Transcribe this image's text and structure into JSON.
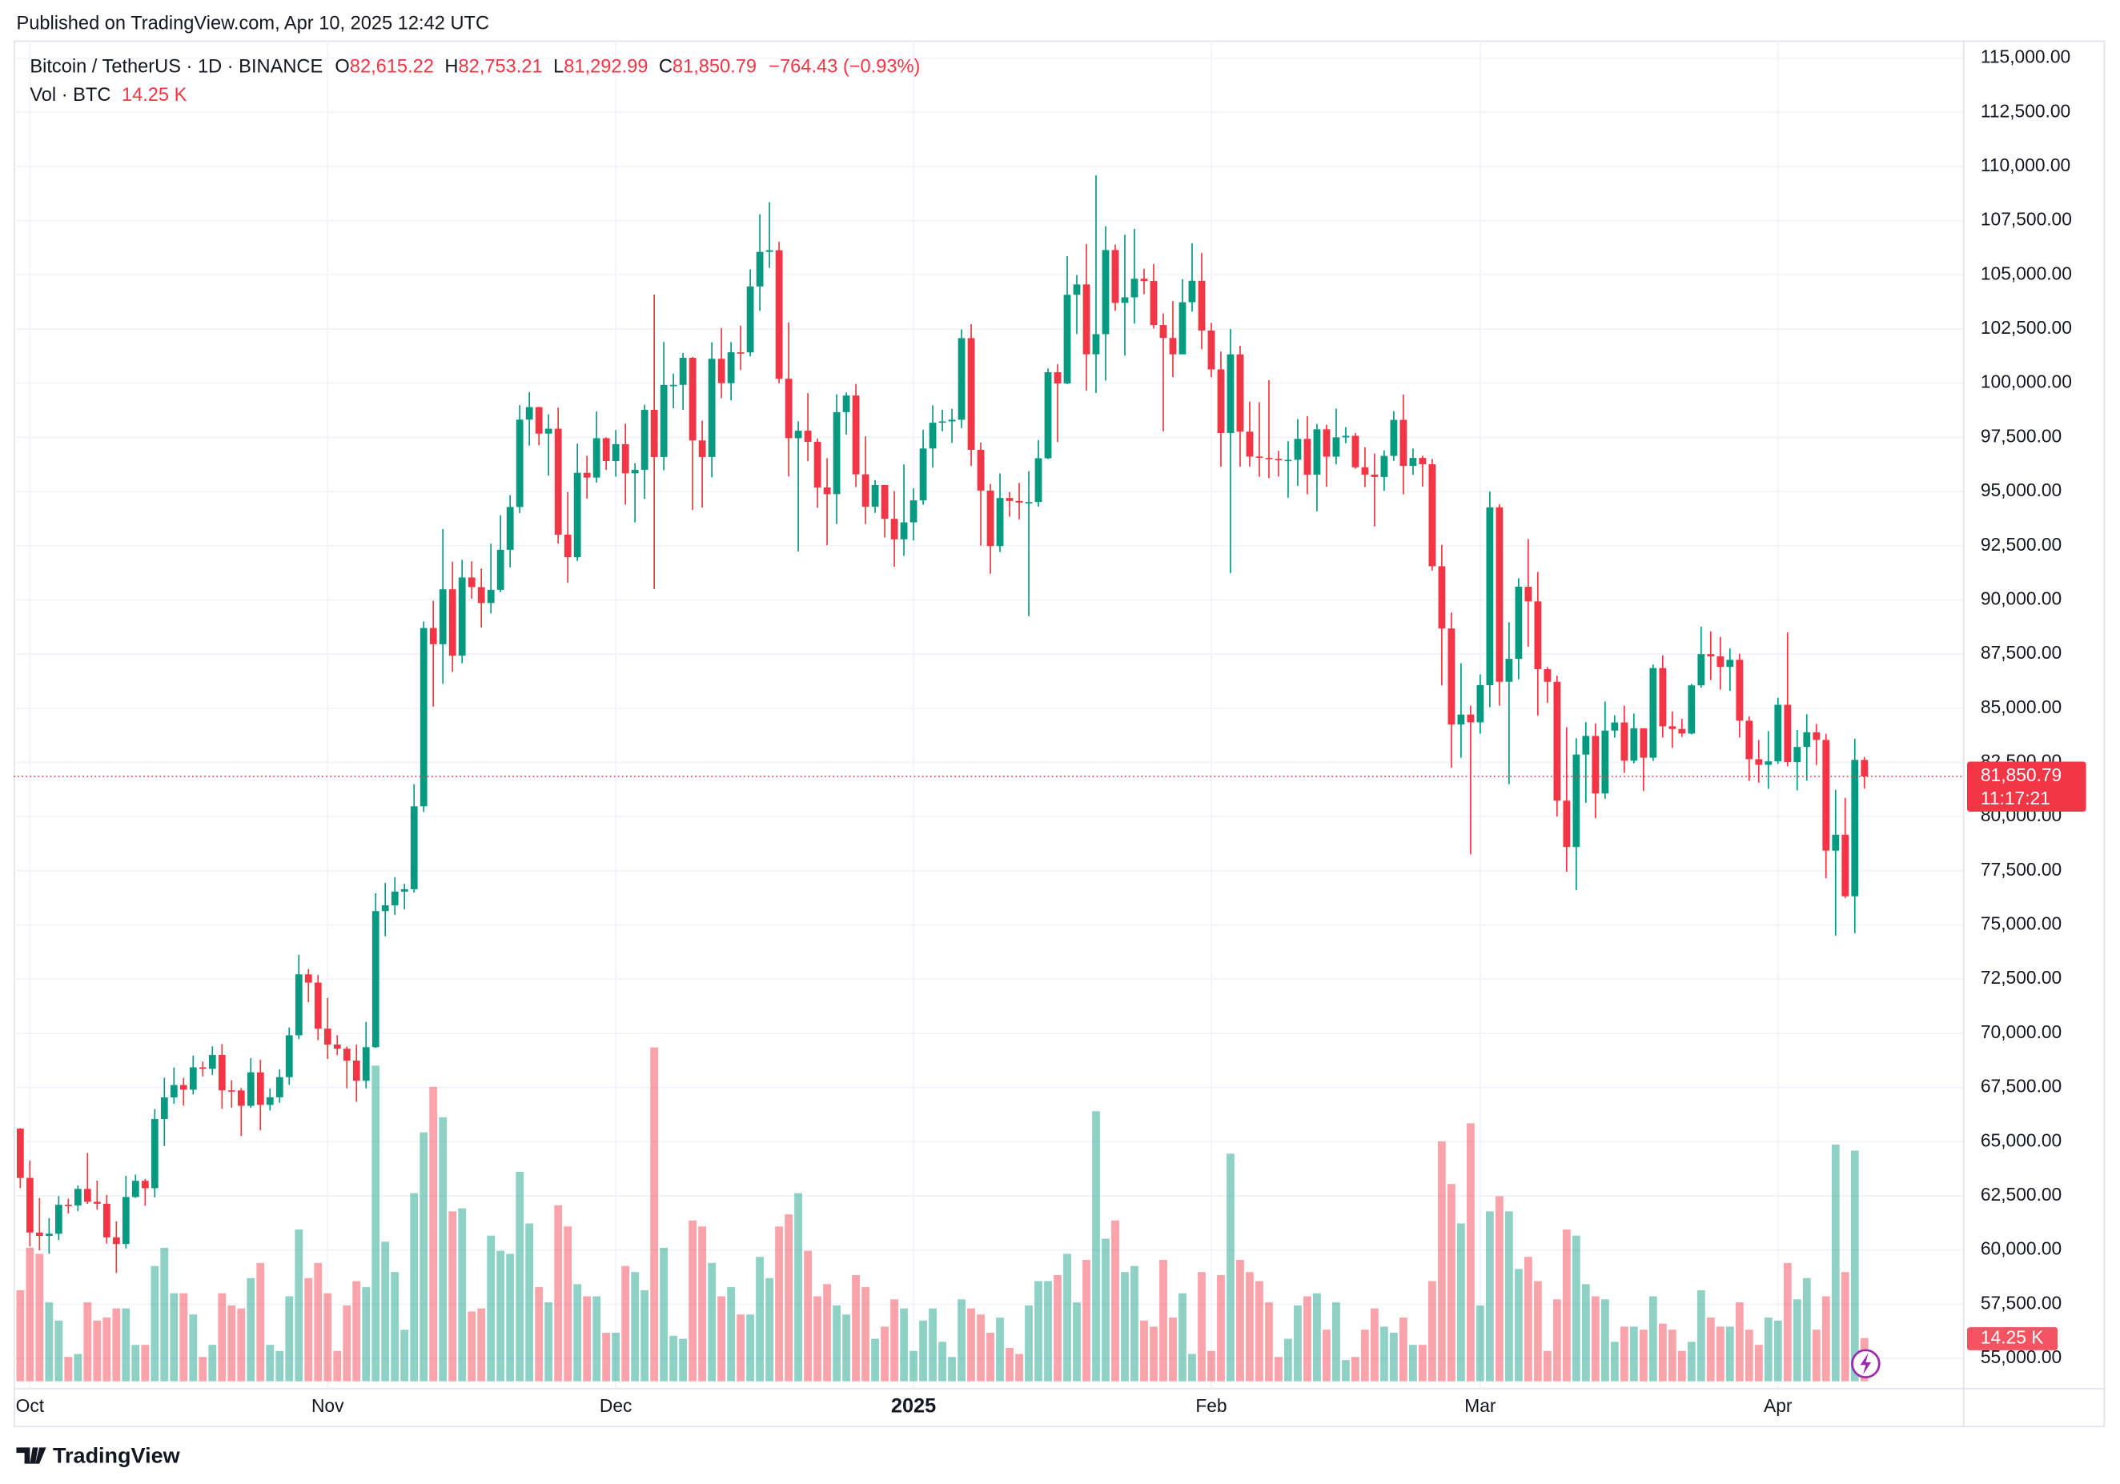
{
  "header": {
    "published": "Published on TradingView.com, Apr 10, 2025 12:42 UTC",
    "brand": "TradingView"
  },
  "chart_data": {
    "type": "candlestick",
    "title": "Bitcoin / TetherUS · 1D · BINANCE",
    "ohlc_legend": [
      {
        "key": "O",
        "label": "82,615.22"
      },
      {
        "key": "H",
        "label": "82,753.21"
      },
      {
        "key": "L",
        "label": "81,292.99"
      },
      {
        "key": "C",
        "label": "81,850.79"
      }
    ],
    "change_label": "−764.43 (−0.93%)",
    "last_price_label": "81,850.79",
    "countdown": "11:17:21",
    "up_color": "#089981",
    "down_color": "#f23645",
    "grid": true,
    "categories": [
      null,
      "Oct",
      null,
      null,
      null,
      null,
      null,
      null,
      null,
      null,
      null,
      null,
      null,
      null,
      null,
      null,
      null,
      null,
      null,
      null,
      null,
      null,
      null,
      null,
      null,
      null,
      null,
      null,
      null,
      null,
      null,
      null,
      "Nov",
      null,
      null,
      null,
      null,
      null,
      null,
      null,
      null,
      null,
      null,
      null,
      null,
      null,
      null,
      null,
      null,
      null,
      null,
      null,
      null,
      null,
      null,
      null,
      null,
      null,
      null,
      null,
      null,
      null,
      "Dec",
      null,
      null,
      null,
      null,
      null,
      null,
      null,
      null,
      null,
      null,
      null,
      null,
      null,
      null,
      null,
      null,
      null,
      null,
      null,
      null,
      null,
      null,
      null,
      null,
      null,
      null,
      null,
      null,
      null,
      null,
      "2025",
      null,
      null,
      null,
      null,
      null,
      null,
      null,
      null,
      null,
      null,
      null,
      null,
      null,
      null,
      null,
      null,
      null,
      null,
      null,
      null,
      null,
      null,
      null,
      null,
      null,
      null,
      null,
      null,
      null,
      null,
      "Feb",
      null,
      null,
      null,
      null,
      null,
      null,
      null,
      null,
      null,
      null,
      null,
      null,
      null,
      null,
      null,
      null,
      null,
      null,
      null,
      null,
      null,
      null,
      null,
      null,
      null,
      null,
      null,
      "Mar",
      null,
      null,
      null,
      null,
      null,
      null,
      null,
      null,
      null,
      null,
      null,
      null,
      null,
      null,
      null,
      null,
      null,
      null,
      null,
      null,
      null,
      null,
      null,
      null,
      null,
      null,
      null,
      null,
      null,
      null,
      "Apr",
      null,
      null,
      null,
      null,
      null,
      null,
      null,
      null,
      null
    ],
    "open": [
      65602,
      63327,
      60805,
      60649,
      60752,
      62086,
      62058,
      62819,
      62224,
      62134,
      60583,
      60276,
      62445,
      63193,
      62851,
      66046,
      67041,
      67612,
      67400,
      68428,
      68362,
      69001,
      67367,
      67362,
      66653,
      68198,
      66698,
      67047,
      67976,
      69907,
      72720,
      72339,
      70215,
      69482,
      69289,
      68741,
      67811,
      69359,
      75640,
      75904,
      76538,
      76649,
      80474,
      88701,
      87955,
      90488,
      87425,
      91032,
      90587,
      89855,
      90465,
      92310,
      94286,
      98317,
      98892,
      97672,
      97900,
      93010,
      91966,
      95863,
      95643,
      97460,
      96407,
      97185,
      95840,
      96002,
      98768,
      96593,
      99920,
      99923,
      101171,
      97356,
      96593,
      101125,
      100001,
      101424,
      101421,
      104463,
      106058,
      106134,
      100204,
      97462,
      97805,
      97291,
      95187,
      94881,
      98663,
      99430,
      95792,
      94300,
      95300,
      93738,
      92793,
      93577,
      94591,
      96985,
      98174,
      98236,
      98314,
      102078,
      96922,
      95043,
      92484,
      94701,
      94566,
      94488,
      94516,
      96534,
      100505,
      99987,
      104077,
      104556,
      101331,
      102260,
      106143,
      103706,
      103960,
      104820,
      104714,
      102682,
      102087,
      101332,
      103733,
      104722,
      102429,
      100635,
      97700,
      101328,
      97763,
      96613,
      96554,
      96506,
      96444,
      96462,
      97430,
      95778,
      97870,
      96608,
      97500,
      97569,
      96118,
      95780,
      95671,
      96644,
      98305,
      96181,
      96551,
      96258,
      91552,
      88680,
      84250,
      84708,
      84349,
      86064,
      94270,
      86220,
      87281,
      90606,
      89931,
      86801,
      86222,
      80734,
      78596,
      82862,
      83722,
      81066,
      83968,
      84343,
      82579,
      84075,
      82718,
      86854,
      84167,
      84043,
      83832,
      86054,
      87498,
      87391,
      86909,
      87232,
      84424,
      82648,
      82390,
      82550,
      85159,
      82516,
      83213,
      83890,
      83537,
      78430,
      79164,
      76322,
      82615.22
    ],
    "high": [
      65620,
      64130,
      62392,
      61470,
      62484,
      62370,
      62975,
      64478,
      63200,
      62543,
      61321,
      63417,
      63480,
      63282,
      66500,
      67950,
      68424,
      67939,
      68969,
      68694,
      69400,
      69500,
      67836,
      67470,
      68850,
      68772,
      67454,
      68332,
      70270,
      73620,
      72961,
      72700,
      71632,
      69914,
      69389,
      69477,
      70522,
      76460,
      76943,
      77199,
      76900,
      81500,
      89000,
      89956,
      93265,
      91765,
      91850,
      91779,
      91449,
      92594,
      93905,
      94831,
      98988,
      99588,
      98908,
      98564,
      98871,
      94973,
      97208,
      96650,
      98693,
      97499,
      97836,
      98130,
      96305,
      99000,
      104088,
      101898,
      100439,
      101399,
      101215,
      98270,
      101888,
      102540,
      101895,
      102650,
      105250,
      107793,
      108353,
      106524,
      102800,
      98233,
      99540,
      97448,
      96538,
      99487,
      99569,
      99963,
      97544,
      95525,
      95300,
      95024,
      96250,
      95151,
      97839,
      98976,
      98778,
      98813,
      102482,
      102724,
      97259,
      95350,
      95836,
      94977,
      95400,
      95940,
      97371,
      100681,
      100873,
      105865,
      104988,
      106422,
      109588,
      107240,
      106394,
      106850,
      107120,
      105286,
      105500,
      103221,
      103784,
      104800,
      106457,
      106012,
      102783,
      101456,
      102500,
      101725,
      99149,
      99120,
      100137,
      96880,
      97323,
      98345,
      98478,
      98119,
      98083,
      98826,
      97972,
      97704,
      97046,
      96753,
      96899,
      98711,
      99475,
      96980,
      96650,
      96500,
      92540,
      89414,
      87078,
      85120,
      86558,
      95000,
      94416,
      88967,
      91000,
      92810,
      91283,
      86897,
      86500,
      84123,
      83617,
      84358,
      84301,
      85309,
      84672,
      85117,
      84756,
      84075,
      87021,
      87443,
      84850,
      84513,
      86129,
      88765,
      88543,
      88292,
      87756,
      87515,
      84624,
      83534,
      83943,
      85487,
      88500,
      83998,
      84720,
      84266,
      83817,
      81243,
      80867,
      83588,
      82753.21
    ],
    "low": [
      62856,
      60164,
      59981,
      59828,
      60459,
      61689,
      61798,
      62128,
      61860,
      60300,
      58946,
      60072,
      62402,
      62045,
      62422,
      64800,
      66750,
      66666,
      67177,
      68011,
      68080,
      66518,
      66571,
      65260,
      66559,
      65521,
      66439,
      66800,
      67617,
      69730,
      71436,
      69685,
      68820,
      68986,
      67458,
      66835,
      67458,
      69322,
      74480,
      75467,
      75714,
      76492,
      80216,
      85072,
      86127,
      86682,
      87073,
      90056,
      88722,
      89376,
      90357,
      91500,
      94004,
      97122,
      97136,
      95734,
      92600,
      90791,
      91792,
      94677,
      95407,
      96000,
      95693,
      94395,
      93578,
      94660,
      90500,
      95981,
      98844,
      98771,
      94150,
      94256,
      95658,
      99311,
      99205,
      100609,
      101237,
      103333,
      105321,
      100000,
      95700,
      92232,
      96398,
      94250,
      92520,
      93500,
      97632,
      95199,
      93500,
      94014,
      92883,
      91530,
      92033,
      92743,
      94392,
      96100,
      97781,
      97250,
      97926,
      96181,
      92500,
      91203,
      92206,
      93840,
      93711,
      89256,
      94306,
      96500,
      97278,
      99950,
      102277,
      99651,
      99550,
      100119,
      103339,
      101262,
      102750,
      104106,
      102520,
      97777,
      100278,
      101328,
      103297,
      101560,
      100279,
      96150,
      91231,
      96150,
      96155,
      95676,
      95620,
      95688,
      94713,
      95256,
      94876,
      94088,
      95217,
      96252,
      97223,
      96046,
      95205,
      93388,
      95029,
      96415,
      94871,
      95770,
      95227,
      91350,
      86050,
      82256,
      82716,
      78258,
      83824,
      85050,
      85117,
      81500,
      86334,
      87836,
      84667,
      85248,
      80000,
      77459,
      76606,
      80635,
      79931,
      80821,
      83639,
      82017,
      82456,
      81179,
      82569,
      83647,
      83175,
      83674,
      83796,
      85946,
      86300,
      85861,
      85800,
      83647,
      81645,
      81565,
      81279,
      82429,
      82320,
      81211,
      81659,
      82379,
      77153,
      74508,
      76239,
      74620,
      81292.99
    ],
    "close": [
      63327,
      60805,
      60649,
      60752,
      62086,
      62058,
      62819,
      62224,
      62134,
      60583,
      60276,
      62445,
      63193,
      62851,
      66046,
      67041,
      67612,
      67400,
      68428,
      68362,
      69001,
      67367,
      67362,
      66653,
      68198,
      66698,
      67047,
      67976,
      69907,
      72720,
      72339,
      70215,
      69482,
      69289,
      68741,
      67811,
      69359,
      75640,
      75904,
      76538,
      76649,
      80474,
      88701,
      87955,
      90488,
      87425,
      91032,
      90587,
      89855,
      90465,
      92310,
      94286,
      98317,
      98892,
      97672,
      97900,
      93010,
      91966,
      95863,
      95643,
      97460,
      96407,
      97185,
      95840,
      96002,
      98768,
      96593,
      99920,
      99923,
      101171,
      97356,
      96593,
      101125,
      100001,
      101424,
      101421,
      104463,
      106058,
      106134,
      100204,
      97462,
      97805,
      97291,
      95187,
      94881,
      98663,
      99430,
      95792,
      94300,
      95300,
      93738,
      92793,
      93577,
      94591,
      96985,
      98174,
      98236,
      98314,
      102078,
      96922,
      95043,
      92484,
      94701,
      94566,
      94488,
      94516,
      96534,
      100505,
      99987,
      104077,
      104556,
      101331,
      102260,
      106143,
      103706,
      103960,
      104820,
      104714,
      102682,
      102087,
      101332,
      103733,
      104722,
      102429,
      100635,
      97700,
      101328,
      97763,
      96613,
      96554,
      96506,
      96444,
      96462,
      97430,
      95778,
      97870,
      96608,
      97500,
      97569,
      96118,
      95780,
      95671,
      96644,
      98305,
      96181,
      96551,
      96258,
      91552,
      88680,
      84250,
      84708,
      84349,
      86064,
      94270,
      86220,
      87281,
      90606,
      89931,
      86801,
      86222,
      80734,
      78596,
      82862,
      83722,
      81066,
      83968,
      84343,
      82579,
      84075,
      82718,
      86854,
      84167,
      84043,
      83832,
      86054,
      87498,
      87391,
      86909,
      87232,
      84424,
      82648,
      82390,
      82550,
      85159,
      82516,
      83213,
      83890,
      83537,
      78430,
      79164,
      76322,
      82615,
      81850.79
    ],
    "volume": {
      "title": "Vol · BTC",
      "last_label": "14.25 K",
      "values": [
        30000,
        44000,
        42000,
        26000,
        20000,
        8000,
        9000,
        26000,
        20000,
        21000,
        24000,
        24000,
        12000,
        12000,
        38000,
        44000,
        29000,
        29000,
        22000,
        8000,
        12000,
        29000,
        25000,
        24000,
        34000,
        39000,
        12000,
        10000,
        28000,
        50000,
        34000,
        39000,
        29000,
        10000,
        25000,
        33000,
        31000,
        104000,
        46000,
        36000,
        17000,
        62000,
        82000,
        97000,
        87000,
        56000,
        57000,
        23000,
        24000,
        48000,
        43000,
        42000,
        69000,
        52000,
        31000,
        26000,
        58000,
        51000,
        32000,
        28000,
        28000,
        16000,
        16000,
        38000,
        36000,
        30000,
        110000,
        44000,
        15000,
        14000,
        53000,
        51000,
        39000,
        28000,
        31000,
        22000,
        22000,
        41000,
        34000,
        51000,
        55000,
        62000,
        43000,
        28000,
        32000,
        25000,
        22000,
        35000,
        31000,
        14000,
        18000,
        27000,
        24000,
        10000,
        20000,
        24000,
        13000,
        8000,
        27000,
        24000,
        22000,
        16000,
        21000,
        11000,
        9000,
        25000,
        33000,
        33000,
        35000,
        42000,
        26000,
        40000,
        89000,
        47000,
        53000,
        36000,
        38000,
        20000,
        18000,
        40000,
        21000,
        29000,
        9000,
        36000,
        10000,
        35000,
        75000,
        40000,
        36000,
        33000,
        26000,
        8000,
        14000,
        25000,
        28000,
        29000,
        17000,
        26000,
        7000,
        8000,
        17000,
        24000,
        18000,
        16000,
        21000,
        12000,
        12000,
        33000,
        79000,
        65000,
        52000,
        85000,
        25000,
        56000,
        61000,
        56000,
        37000,
        41000,
        33000,
        10000,
        27000,
        50000,
        48000,
        32000,
        28000,
        27000,
        13000,
        18000,
        18000,
        17000,
        28000,
        19000,
        17000,
        10000,
        13000,
        30000,
        21000,
        18000,
        18000,
        26000,
        17000,
        12000,
        21000,
        20000,
        39000,
        27000,
        34000,
        17000,
        28000,
        78000,
        36000,
        76000,
        14250
      ]
    },
    "ylim": [
      53630,
      115810
    ],
    "yticks": [
      {
        "value": 55000,
        "label": "55,000.00"
      },
      {
        "value": 57500,
        "label": "57,500.00"
      },
      {
        "value": 60000,
        "label": "60,000.00"
      },
      {
        "value": 62500,
        "label": "62,500.00"
      },
      {
        "value": 65000,
        "label": "65,000.00"
      },
      {
        "value": 67500,
        "label": "67,500.00"
      },
      {
        "value": 70000,
        "label": "70,000.00"
      },
      {
        "value": 72500,
        "label": "72,500.00"
      },
      {
        "value": 75000,
        "label": "75,000.00"
      },
      {
        "value": 77500,
        "label": "77,500.00"
      },
      {
        "value": 80000,
        "label": "80,000.00"
      },
      {
        "value": 82500,
        "label": "82,500.00"
      },
      {
        "value": 85000,
        "label": "85,000.00"
      },
      {
        "value": 87500,
        "label": "87,500.00"
      },
      {
        "value": 90000,
        "label": "90,000.00"
      },
      {
        "value": 92500,
        "label": "92,500.00"
      },
      {
        "value": 95000,
        "label": "95,000.00"
      },
      {
        "value": 97500,
        "label": "97,500.00"
      },
      {
        "value": 100000,
        "label": "100,000.00"
      },
      {
        "value": 102500,
        "label": "102,500.00"
      },
      {
        "value": 105000,
        "label": "105,000.00"
      },
      {
        "value": 107500,
        "label": "107,500.00"
      },
      {
        "value": 110000,
        "label": "110,000.00"
      },
      {
        "value": 112500,
        "label": "112,500.00"
      },
      {
        "value": 115000,
        "label": "115,000.00"
      }
    ]
  }
}
